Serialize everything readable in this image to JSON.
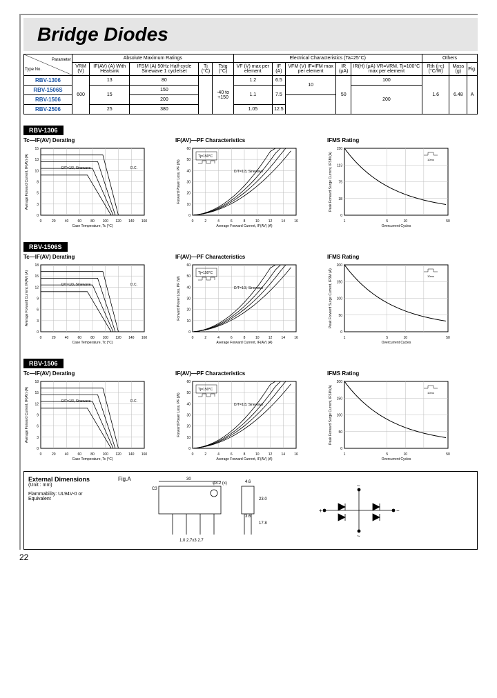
{
  "page_title": "Bridge Diodes",
  "page_number": "22",
  "table": {
    "header_group1": "Absolute Maximum Ratings",
    "header_group2": "Electrical Characteristics (Ta=25°C)",
    "header_group3": "Others",
    "param_label": "Parameter",
    "type_label": "Type No.",
    "h_vrm": "VRM (V)",
    "h_ifav": "IF(AV) (A) With Heatsink",
    "h_ifsm": "IFSM (A) 50Hz Half-cycle Sinewave 1 cycle/set",
    "h_tj": "Tj (°C)",
    "h_tstg": "Tstg (°C)",
    "h_vf": "VF (V) max per element",
    "h_if": "IF (A)",
    "h_vfm": "VFM (V) IF=IFM max per element",
    "h_ir": "IR (μA)",
    "h_irh": "IR(H) (μA) VR=VRM, Tj=100°C max per element",
    "h_rth": "Rth (j-c) (°C/W)",
    "h_mass": "Mass (g)",
    "h_fig": "Fig.",
    "rows": [
      {
        "type": "RBV-1306",
        "ifav": "13",
        "ifsm": "80",
        "vf": "1.2",
        "if": "6.5",
        "irh": "100"
      },
      {
        "type": "RBV-1506S",
        "ifav": "15",
        "ifsm": "150",
        "vf": "1.1",
        "if": "7.5"
      },
      {
        "type": "RBV-1506",
        "ifsm": "200"
      },
      {
        "type": "RBV-2506",
        "ifav": "25",
        "ifsm": "380",
        "vf": "1.05",
        "if": "12.5"
      }
    ],
    "vrm": "600",
    "tstg": "-40 to +150",
    "vfm": "10",
    "ir": "50",
    "irh2": "200",
    "rth": "1.6",
    "mass": "6.48",
    "fig": "A"
  },
  "sections": [
    {
      "label": "RBV-1306",
      "c1_ymax": 15,
      "c2_ymax": 60,
      "c3_ymax": 150
    },
    {
      "label": "RBV-1506S",
      "c1_ymax": 18,
      "c2_ymax": 60,
      "c3_ymax": 200
    },
    {
      "label": "RBV-1506",
      "c1_ymax": 18,
      "c2_ymax": 60,
      "c3_ymax": 200
    }
  ],
  "chart_titles": {
    "c1": "Tc—IF(AV) Derating",
    "c2": "IF(AV)—PF Characteristics",
    "c3": "IFMS Rating"
  },
  "chart_labels": {
    "c1_x": "Case Temperature, Tc (°C)",
    "c1_y": "Average Forward Current, IF(AV) (A)",
    "c2_x": "Average Forward Current, IF(AV) (A)",
    "c2_y": "Forward Power Loss, PF (W)",
    "c3_x": "Overcurrent Cycles",
    "c3_y": "Peak Forward Surge Current, IFSM (A)",
    "curve_dc": "D.C.",
    "curve_12": "D/T=1/2",
    "curve_13": "D/T=1/3",
    "curve_13s": "D/T=1/3, Sinewave",
    "curve_16": "D/T=1/6",
    "tj": "Tj=150°C"
  },
  "ext_dim": {
    "title": "External Dimensions",
    "unit": "(Unit : mm)",
    "fig": "Fig.A",
    "flame": "Flammability: UL94V-0 or Equivalent",
    "d1": "30",
    "d2": "φ3.2 (x)",
    "d3": "4.6",
    "d4": "3.6",
    "d5": "23.0",
    "d6": "17.8",
    "d7": "1.0",
    "d8": "2.7x3",
    "d9": "2.7",
    "d10": "C3",
    "pins": [
      "+",
      "~",
      "~",
      "-"
    ]
  },
  "colors": {
    "frame": "#000000",
    "grid": "#888888",
    "curve": "#000000",
    "title_bg": "#e5e5e5",
    "link": "#1a55a8"
  }
}
